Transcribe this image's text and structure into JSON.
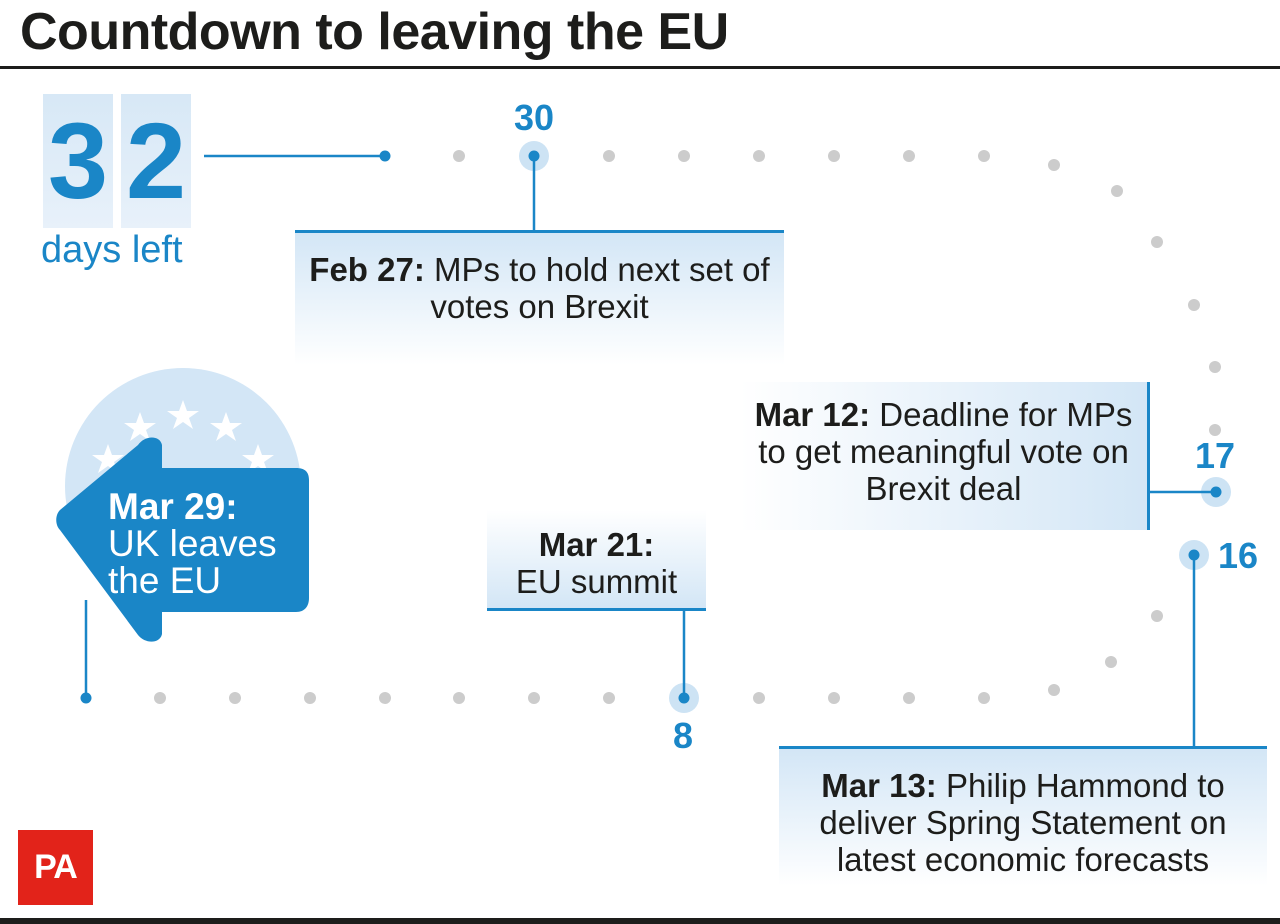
{
  "title": "Countdown to leaving the EU",
  "counter": {
    "digits": [
      "3",
      "2"
    ],
    "label": "days left"
  },
  "markers": {
    "m30": "30",
    "m17": "17",
    "m16": "16",
    "m8": "8"
  },
  "events": {
    "feb27": {
      "date": "Feb 27:",
      "text": " MPs to hold next set of votes on Brexit"
    },
    "mar12": {
      "date": "Mar 12:",
      "text": " Deadline for MPs to get meaningful vote on Brexit deal"
    },
    "mar21": {
      "date": "Mar 21:",
      "text": "EU summit"
    },
    "mar13": {
      "date": "Mar 13:",
      "text": " Philip Hammond to deliver Spring Statement on latest economic forecasts"
    },
    "mar29": {
      "date": "Mar 29:",
      "text": "UK leaves the EU"
    }
  },
  "logo": "PA",
  "colors": {
    "accent": "#1a86c7",
    "light": "#d3e6f6",
    "dot": "#cccccc",
    "logo": "#e2231a"
  }
}
